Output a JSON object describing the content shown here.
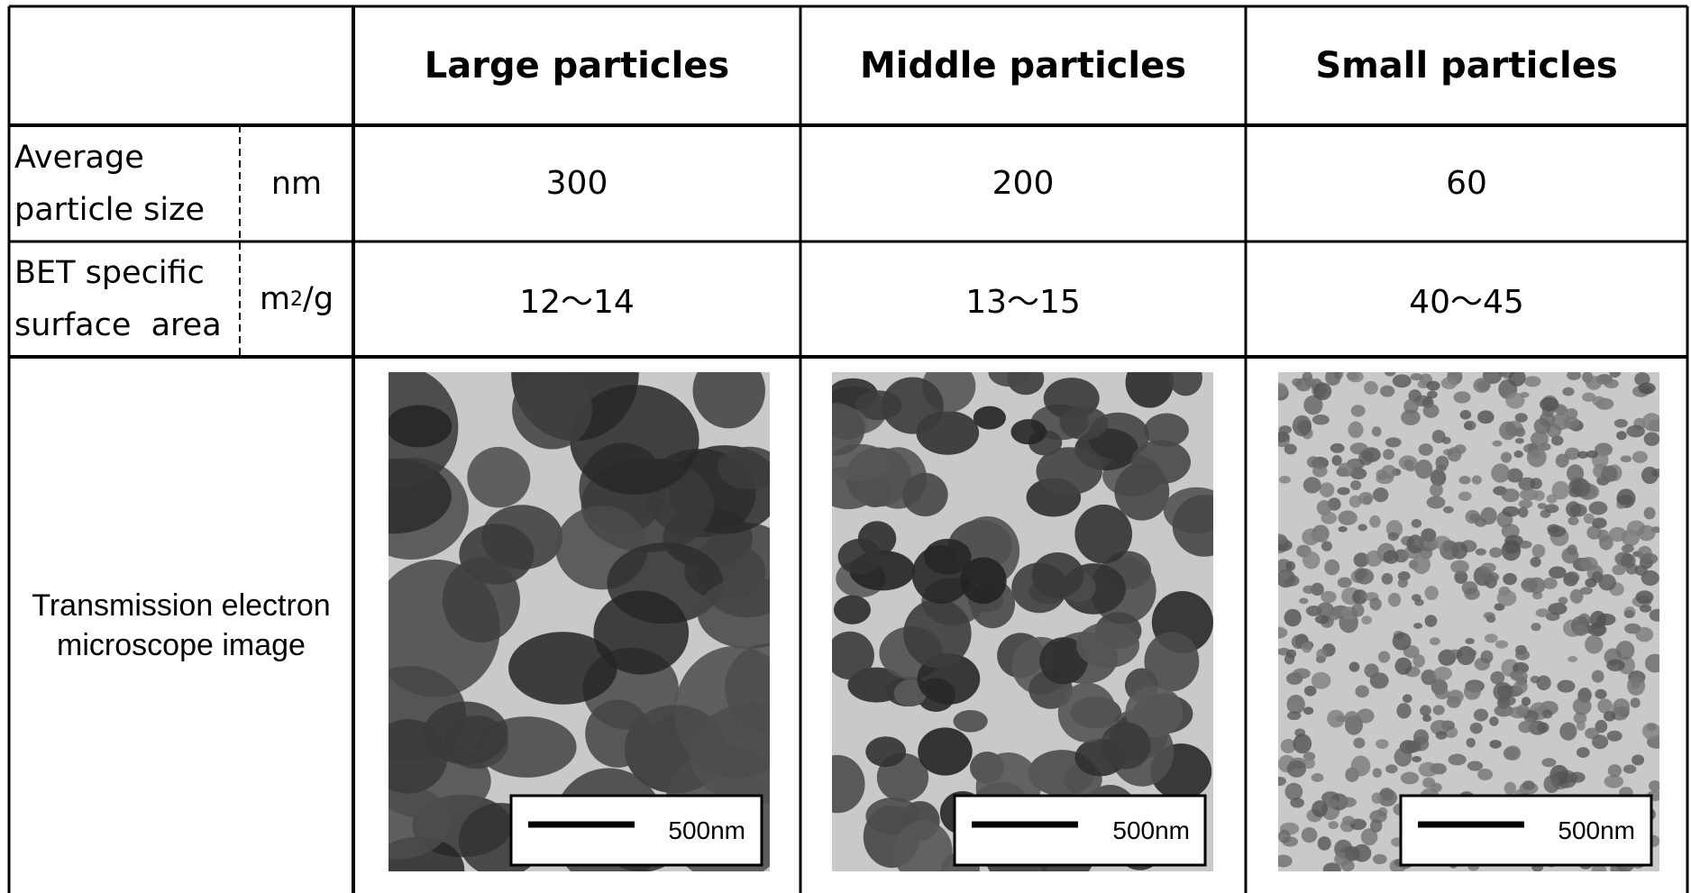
{
  "table": {
    "columns": [
      "Large particles",
      "Middle particles",
      "Small particles"
    ],
    "rows": [
      {
        "label": "Average particle size",
        "unit": [
          "nm"
        ],
        "values": [
          300,
          200,
          60
        ]
      },
      {
        "label": "BET specific surface  area",
        "unit": [
          "m",
          "2",
          "/g"
        ],
        "values": [
          "12〜14",
          "13〜15",
          "40〜45"
        ]
      }
    ],
    "image_row": {
      "label": "Transmission electron microscope image",
      "scale_bars": [
        "500nm",
        "500nm",
        "500nm"
      ]
    }
  }
}
